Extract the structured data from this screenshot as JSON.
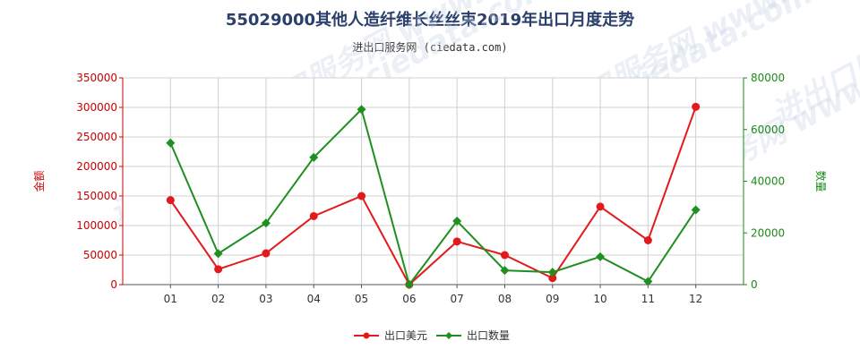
{
  "title": "55029000其他人造纤维长丝丝束2019年出口月度走势",
  "subtitle": "进出口服务网 (ciedata.com)",
  "watermark": "进出口服务网 www.ciedata.com",
  "chart_data": {
    "type": "line",
    "categories": [
      "01",
      "02",
      "03",
      "04",
      "05",
      "06",
      "07",
      "08",
      "09",
      "10",
      "11",
      "12"
    ],
    "series": [
      {
        "name": "出口美元",
        "axis": "left",
        "color": "#e31a1c",
        "values": [
          143000,
          26000,
          53000,
          116000,
          150000,
          0,
          73000,
          50000,
          11000,
          132000,
          75000,
          301000
        ]
      },
      {
        "name": "出口数量",
        "axis": "right",
        "color": "#1f8f1f",
        "values": [
          54800,
          12000,
          23800,
          49200,
          67800,
          0,
          24600,
          5500,
          4800,
          10800,
          1200,
          28900
        ]
      }
    ],
    "ylabel_left": "金额",
    "ylabel_right": "数量",
    "ylim_left": [
      0,
      350000
    ],
    "ylim_right": [
      0,
      80000
    ],
    "yticks_left": [
      "0",
      "50000",
      "100000",
      "150000",
      "200000",
      "250000",
      "300000",
      "350000"
    ],
    "yticks_right": [
      "0",
      "20000",
      "40000",
      "60000",
      "80000"
    ],
    "grid": true,
    "legend_position": "bottom"
  }
}
